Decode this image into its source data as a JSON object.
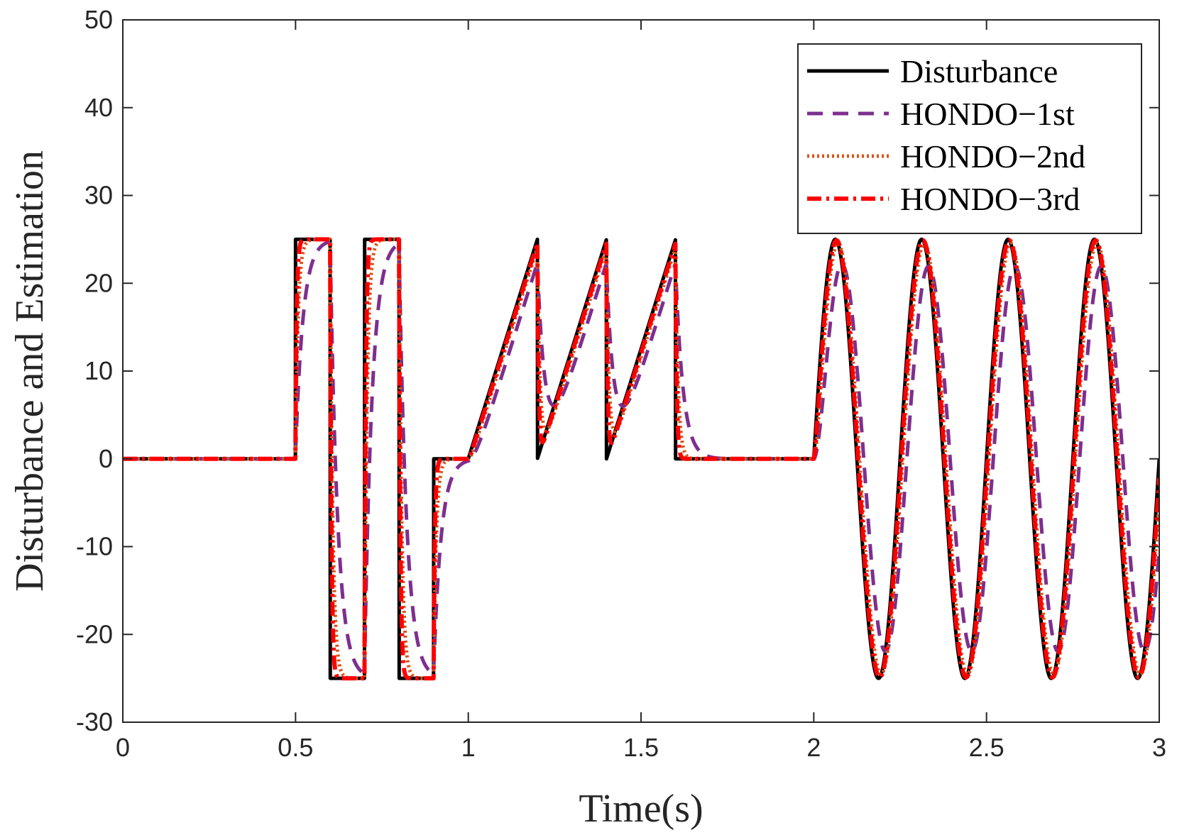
{
  "chart_data": {
    "type": "line",
    "title": "",
    "xlabel": "Time(s)",
    "ylabel": "Disturbance and Estimation",
    "xlim": [
      0,
      3
    ],
    "ylim": [
      -30,
      50
    ],
    "xticks": [
      0,
      0.5,
      1,
      1.5,
      2,
      2.5,
      3
    ],
    "xtick_labels": [
      "0",
      "0.5",
      "1",
      "1.5",
      "2",
      "2.5",
      "3"
    ],
    "yticks": [
      -30,
      -20,
      -10,
      0,
      10,
      20,
      30,
      40,
      50
    ],
    "ytick_labels": [
      "-30",
      "-20",
      "-10",
      "0",
      "10",
      "20",
      "30",
      "40",
      "50"
    ],
    "grid": false,
    "legend_position": "top-right",
    "disturbance_description": "0 for t<0.5; square wave +/-25 with 0.1 s pulses from 0.5 to 0.9; 0 from 0.9 to 1.0; sawtooth ramps 0 to 25 over [1.0,1.2], [1.2,1.4], [1.4,1.6]; 0 from 1.6 to 2.0; 25*sin(2*pi*4*(t-2)) from 2.0 to 3.0",
    "series": [
      {
        "name": "Disturbance",
        "color": "#000000",
        "style": "solid",
        "observer_time_constant": 0
      },
      {
        "name": "HONDO−1st",
        "color": "#7E2F8E",
        "style": "dashed",
        "observer_time_constant": 0.022
      },
      {
        "name": "HONDO−2nd",
        "color": "#D95319",
        "style": "dotted",
        "observer_time_constant": 0.008
      },
      {
        "name": "HONDO−3rd",
        "color": "#FF0000",
        "style": "dashdot",
        "observer_time_constant": 0.004
      }
    ]
  }
}
